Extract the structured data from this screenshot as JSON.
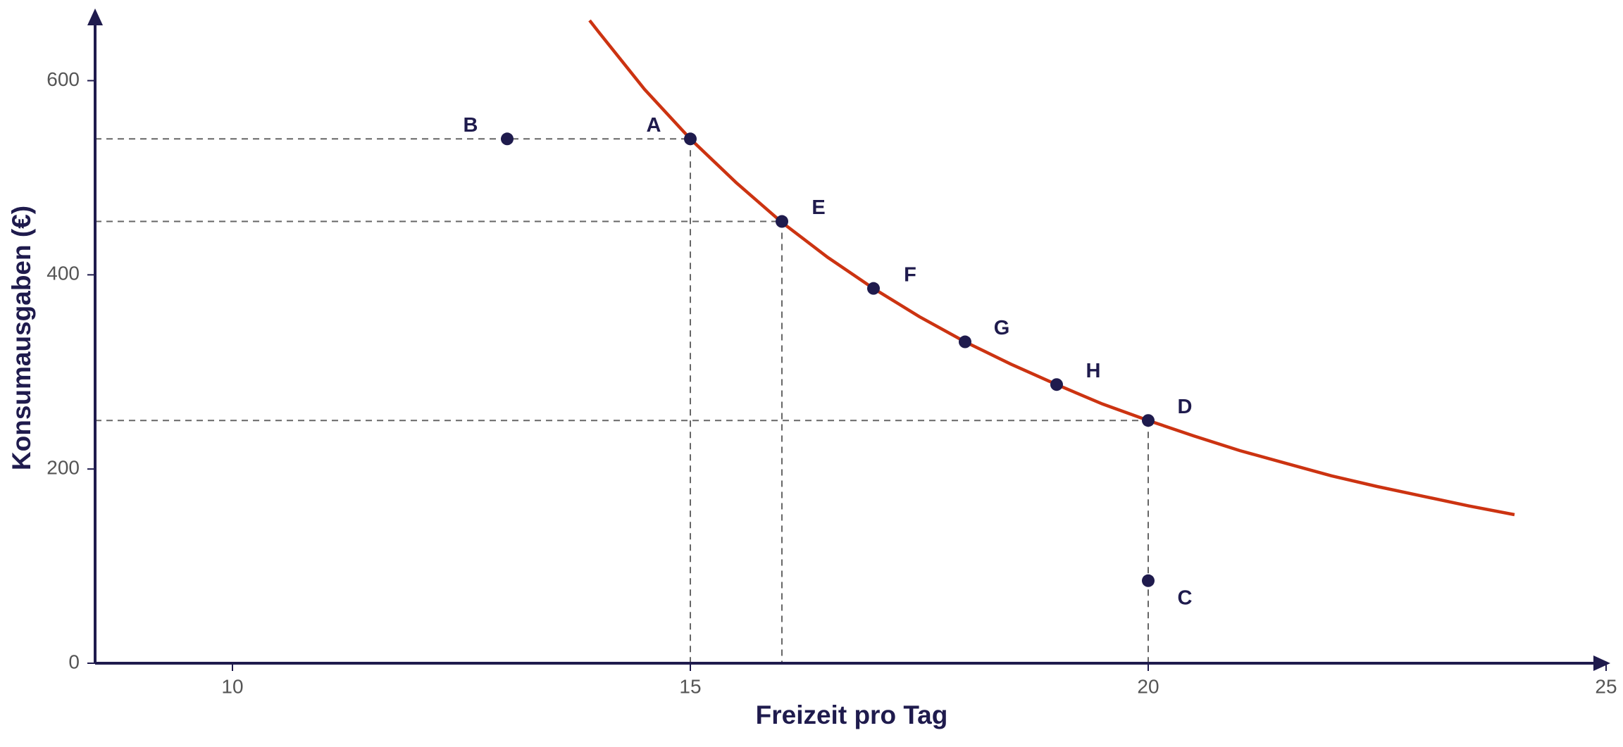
{
  "chart_data": {
    "type": "scatter",
    "x_label": "Freizeit pro Tag",
    "y_label": "Konsumausgaben (€)",
    "xlim": [
      8.5,
      25
    ],
    "ylim": [
      0,
      670
    ],
    "xticks": [
      10,
      15,
      20,
      25
    ],
    "yticks": [
      0,
      200,
      400,
      600
    ],
    "axis_color": "#1f1b4d",
    "curve": {
      "color": "#cc3311",
      "x": [
        13.9,
        14,
        14.5,
        15,
        15.5,
        16,
        16.5,
        17,
        17.5,
        18,
        18.5,
        19,
        19.5,
        20,
        20.5,
        21,
        21.5,
        22,
        22.5,
        23,
        23.5,
        24
      ],
      "y": [
        662,
        650,
        591,
        540,
        495,
        454,
        418,
        386,
        357,
        331,
        308,
        287,
        267,
        250,
        234,
        219,
        206,
        193,
        182,
        172,
        162,
        153
      ]
    },
    "points_color": "#1f1b4d",
    "points": [
      {
        "label": "A",
        "x": 15,
        "y": 540,
        "label_position": "upper-left",
        "guides": true
      },
      {
        "label": "B",
        "x": 13,
        "y": 540,
        "label_position": "upper-left",
        "guides": false
      },
      {
        "label": "E",
        "x": 16,
        "y": 455,
        "label_position": "upper-right",
        "guides": true
      },
      {
        "label": "F",
        "x": 17,
        "y": 386,
        "label_position": "upper-right",
        "guides": false
      },
      {
        "label": "G",
        "x": 18,
        "y": 331,
        "label_position": "upper-right",
        "guides": false
      },
      {
        "label": "H",
        "x": 19,
        "y": 287,
        "label_position": "upper-right",
        "guides": false
      },
      {
        "label": "D",
        "x": 20,
        "y": 250,
        "label_position": "upper-right",
        "guides": true
      },
      {
        "label": "C",
        "x": 20,
        "y": 85,
        "label_position": "lower-right",
        "guides": false
      }
    ]
  }
}
